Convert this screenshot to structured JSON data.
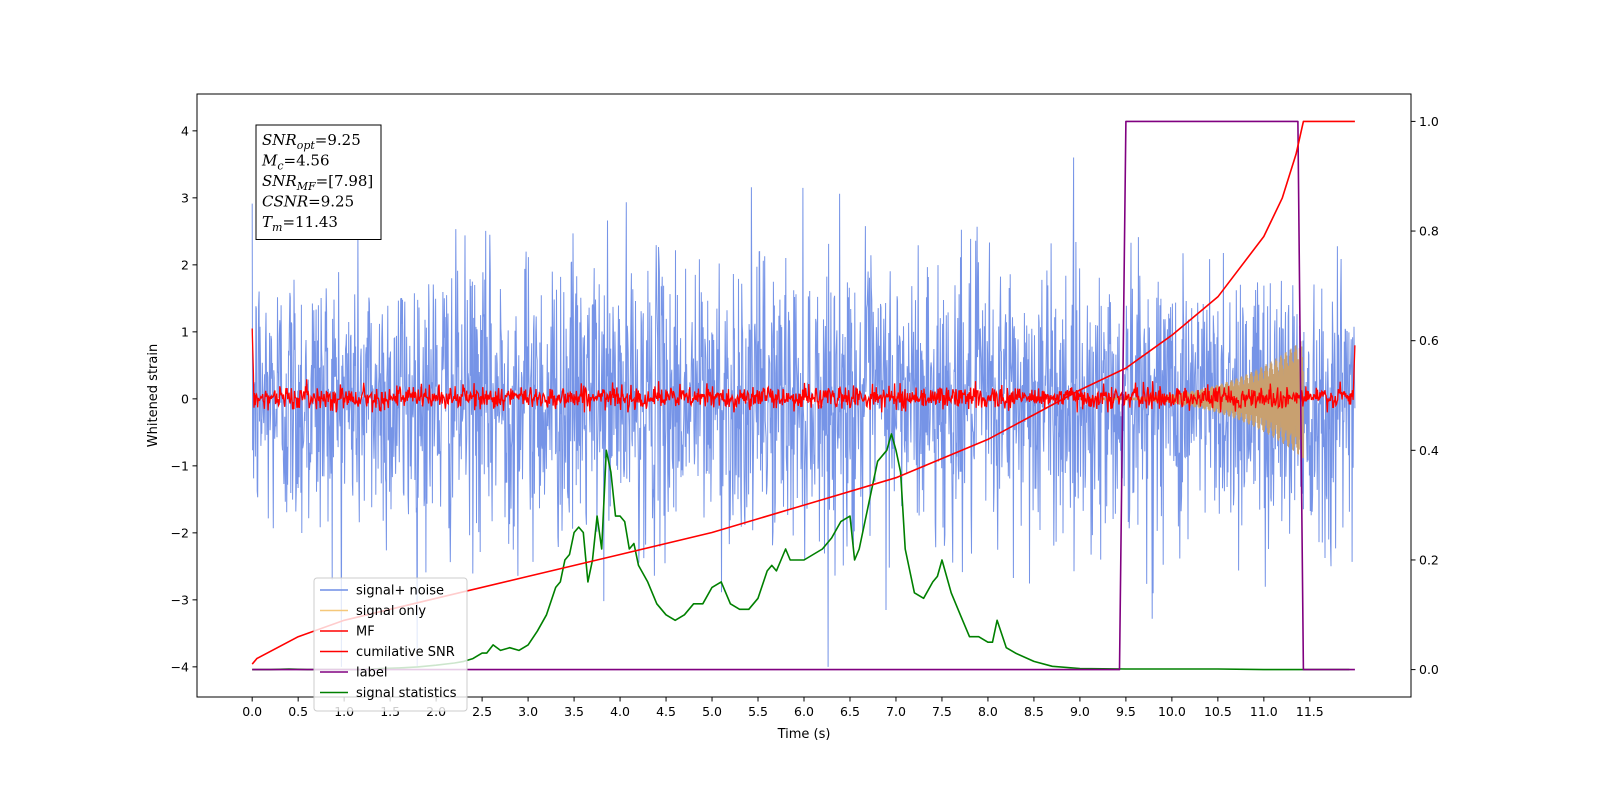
{
  "chart_data": {
    "type": "line",
    "title": "",
    "xlabel": "Time (s)",
    "ylabel": "Whitened strain",
    "ylabel_right": "",
    "xlim": [
      -0.6,
      12.6
    ],
    "ylim": [
      -4.45,
      4.55
    ],
    "ylim_right": [
      -0.05,
      1.05
    ],
    "x_ticks": [
      0.0,
      0.5,
      1.0,
      1.5,
      2.0,
      2.5,
      3.0,
      3.5,
      4.0,
      4.5,
      5.0,
      5.5,
      6.0,
      6.5,
      7.0,
      7.5,
      8.0,
      8.5,
      9.0,
      9.5,
      10.0,
      10.5,
      11.0,
      11.5
    ],
    "x_tick_labels": [
      "0.0",
      "0.5",
      "1.0",
      "1.5",
      "2.0",
      "2.5",
      "3.0",
      "3.5",
      "4.0",
      "4.5",
      "5.0",
      "5.5",
      "6.0",
      "6.5",
      "7.0",
      "7.5",
      "8.0",
      "8.5",
      "9.0",
      "9.5",
      "10.0",
      "10.5",
      "11.0",
      "11.5"
    ],
    "y_ticks": [
      -4,
      -3,
      -2,
      -1,
      0,
      1,
      2,
      3,
      4
    ],
    "y_tick_labels": [
      "−4",
      "−3",
      "−2",
      "−1",
      "0",
      "1",
      "2",
      "3",
      "4"
    ],
    "y_ticks_right": [
      0.0,
      0.2,
      0.4,
      0.6,
      0.8,
      1.0
    ],
    "y_tick_labels_right": [
      "0.0",
      "0.2",
      "0.4",
      "0.6",
      "0.8",
      "1.0"
    ],
    "grid": false,
    "legend": {
      "placement": "lower-left",
      "entries": [
        {
          "name": "signal+ noise",
          "color": "#6f8ee6"
        },
        {
          "name": "signal only",
          "color": "#f5c87a"
        },
        {
          "name": "MF",
          "color": "#ff0000"
        },
        {
          "name": "cumilative SNR",
          "color": "#ff0000"
        },
        {
          "name": "label",
          "color": "#800080"
        },
        {
          "name": "signal statistics",
          "color": "#008000"
        }
      ]
    },
    "annotation": {
      "lines": [
        {
          "base": "SNR",
          "sub": "opt",
          "rest": "=9.25"
        },
        {
          "base": "M",
          "sub": "c",
          "rest": "=4.56"
        },
        {
          "base": "SNR",
          "sub": "MF",
          "rest": "=[7.98]"
        },
        {
          "base": "CSNR",
          "sub": "",
          "rest": "=9.25"
        },
        {
          "base": "T",
          "sub": "m",
          "rest": "=11.43"
        }
      ]
    },
    "series": [
      {
        "name": "signal+ noise",
        "axis": "left",
        "style": "noise",
        "x_range": [
          0.0,
          11.99
        ],
        "color": "#6f8ee6",
        "approx_envelope": {
          "typical_min": -2.3,
          "typical_max": 2.3,
          "peak_min": -4.0,
          "peak_max": 4.15
        }
      },
      {
        "name": "signal only",
        "axis": "left",
        "style": "chirp",
        "x_range": [
          9.0,
          11.43
        ],
        "color": "#c8a070",
        "amplitude_at_end": 0.85
      },
      {
        "name": "MF",
        "axis": "left",
        "style": "noise",
        "x_range": [
          0.0,
          11.99
        ],
        "color": "#ff0000",
        "approx_envelope": {
          "typical_min": -0.15,
          "typical_max": 0.2,
          "peak_max": 0.45
        },
        "edge_values": {
          "start": 1.0,
          "end": 0.8
        }
      },
      {
        "name": "cumilative SNR",
        "axis": "right",
        "color": "#ff0000",
        "x": [
          0.0,
          0.05,
          0.5,
          1.0,
          2.0,
          3.0,
          4.0,
          5.0,
          6.0,
          7.0,
          8.0,
          9.0,
          9.5,
          10.0,
          10.5,
          11.0,
          11.2,
          11.35,
          11.43,
          11.99
        ],
        "values": [
          0.01,
          0.02,
          0.06,
          0.09,
          0.13,
          0.17,
          0.21,
          0.25,
          0.3,
          0.35,
          0.42,
          0.51,
          0.55,
          0.61,
          0.68,
          0.79,
          0.86,
          0.94,
          1.0,
          1.0
        ]
      },
      {
        "name": "label",
        "axis": "right",
        "color": "#800080",
        "x": [
          0.0,
          9.43,
          9.5,
          11.37,
          11.43,
          11.99
        ],
        "values": [
          0.0,
          0.0,
          1.0,
          1.0,
          0.0,
          0.0
        ]
      },
      {
        "name": "signal statistics",
        "axis": "right",
        "color": "#008000",
        "x": [
          0.0,
          0.2,
          0.4,
          0.6,
          0.8,
          1.0,
          1.2,
          1.4,
          1.6,
          1.8,
          2.0,
          2.2,
          2.3,
          2.4,
          2.5,
          2.55,
          2.62,
          2.7,
          2.8,
          2.9,
          3.0,
          3.1,
          3.2,
          3.3,
          3.35,
          3.4,
          3.45,
          3.5,
          3.55,
          3.6,
          3.65,
          3.7,
          3.75,
          3.8,
          3.85,
          3.9,
          3.95,
          4.0,
          4.05,
          4.1,
          4.15,
          4.2,
          4.3,
          4.4,
          4.5,
          4.6,
          4.7,
          4.8,
          4.9,
          5.0,
          5.1,
          5.2,
          5.3,
          5.4,
          5.5,
          5.6,
          5.65,
          5.7,
          5.75,
          5.8,
          5.85,
          5.9,
          6.0,
          6.1,
          6.2,
          6.3,
          6.4,
          6.5,
          6.55,
          6.6,
          6.7,
          6.8,
          6.9,
          6.95,
          7.0,
          7.05,
          7.1,
          7.2,
          7.3,
          7.4,
          7.45,
          7.5,
          7.6,
          7.7,
          7.8,
          7.9,
          8.0,
          8.05,
          8.1,
          8.2,
          8.3,
          8.5,
          8.7,
          9.0,
          9.5,
          10.0,
          10.5,
          11.0,
          11.5,
          11.93
        ],
        "values": [
          0.0,
          0.0,
          0.001,
          0.0,
          0.0,
          0.0,
          0.0,
          0.002,
          0.003,
          0.005,
          0.008,
          0.012,
          0.015,
          0.02,
          0.03,
          0.03,
          0.045,
          0.035,
          0.04,
          0.035,
          0.045,
          0.07,
          0.1,
          0.15,
          0.16,
          0.2,
          0.21,
          0.25,
          0.26,
          0.25,
          0.16,
          0.2,
          0.28,
          0.22,
          0.4,
          0.36,
          0.28,
          0.28,
          0.27,
          0.22,
          0.23,
          0.19,
          0.16,
          0.12,
          0.1,
          0.09,
          0.1,
          0.12,
          0.12,
          0.15,
          0.16,
          0.12,
          0.11,
          0.11,
          0.13,
          0.18,
          0.19,
          0.18,
          0.2,
          0.22,
          0.2,
          0.2,
          0.2,
          0.21,
          0.22,
          0.24,
          0.27,
          0.28,
          0.2,
          0.22,
          0.3,
          0.38,
          0.4,
          0.43,
          0.4,
          0.36,
          0.22,
          0.14,
          0.13,
          0.16,
          0.17,
          0.2,
          0.14,
          0.1,
          0.06,
          0.06,
          0.05,
          0.05,
          0.09,
          0.04,
          0.03,
          0.015,
          0.006,
          0.002,
          0.001,
          0.001,
          0.001,
          0.0,
          0.0,
          0.0
        ]
      }
    ]
  }
}
